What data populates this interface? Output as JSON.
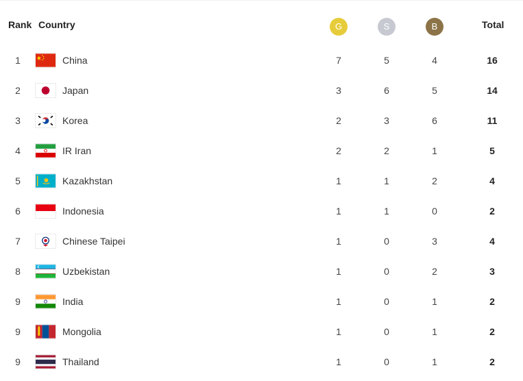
{
  "header": {
    "rank": "Rank",
    "country": "Country",
    "gold": "G",
    "silver": "S",
    "bronze": "B",
    "total": "Total"
  },
  "colors": {
    "gold": "#e6cc3a",
    "silver": "#c7c9d1",
    "bronze": "#8c7448"
  },
  "rows": [
    {
      "rank": "1",
      "country": "China",
      "flag": "china-flag-icon",
      "gold": "7",
      "silver": "5",
      "bronze": "4",
      "total": "16"
    },
    {
      "rank": "2",
      "country": "Japan",
      "flag": "japan-flag-icon",
      "gold": "3",
      "silver": "6",
      "bronze": "5",
      "total": "14"
    },
    {
      "rank": "3",
      "country": "Korea",
      "flag": "korea-flag-icon",
      "gold": "2",
      "silver": "3",
      "bronze": "6",
      "total": "11"
    },
    {
      "rank": "4",
      "country": "IR Iran",
      "flag": "iran-flag-icon",
      "gold": "2",
      "silver": "2",
      "bronze": "1",
      "total": "5"
    },
    {
      "rank": "5",
      "country": "Kazakhstan",
      "flag": "kazakhstan-flag-icon",
      "gold": "1",
      "silver": "1",
      "bronze": "2",
      "total": "4"
    },
    {
      "rank": "6",
      "country": "Indonesia",
      "flag": "indonesia-flag-icon",
      "gold": "1",
      "silver": "1",
      "bronze": "0",
      "total": "2"
    },
    {
      "rank": "7",
      "country": "Chinese Taipei",
      "flag": "chinese-taipei-flag-icon",
      "gold": "1",
      "silver": "0",
      "bronze": "3",
      "total": "4"
    },
    {
      "rank": "8",
      "country": "Uzbekistan",
      "flag": "uzbekistan-flag-icon",
      "gold": "1",
      "silver": "0",
      "bronze": "2",
      "total": "3"
    },
    {
      "rank": "9",
      "country": "India",
      "flag": "india-flag-icon",
      "gold": "1",
      "silver": "0",
      "bronze": "1",
      "total": "2"
    },
    {
      "rank": "9",
      "country": "Mongolia",
      "flag": "mongolia-flag-icon",
      "gold": "1",
      "silver": "0",
      "bronze": "1",
      "total": "2"
    },
    {
      "rank": "9",
      "country": "Thailand",
      "flag": "thailand-flag-icon",
      "gold": "1",
      "silver": "0",
      "bronze": "1",
      "total": "2"
    }
  ]
}
